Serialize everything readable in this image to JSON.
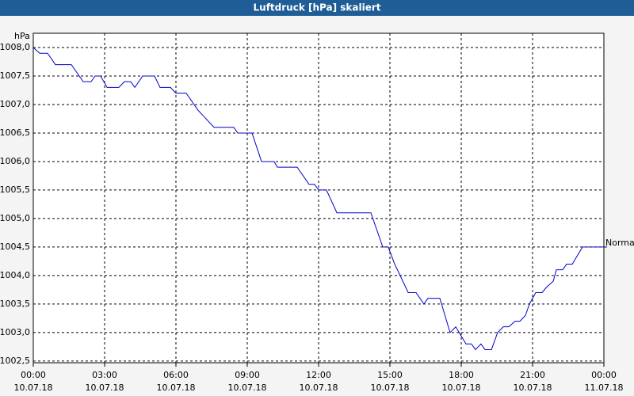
{
  "chart_data": {
    "type": "line",
    "title": "Luftdruck [hPa] skaliert",
    "y_label": "hPa",
    "xlim": [
      0,
      24
    ],
    "ylim": [
      1002.47,
      1008.25
    ],
    "grid": true,
    "xticks": [
      {
        "value": 0,
        "label": "00:00",
        "date": "10.07.18"
      },
      {
        "value": 3,
        "label": "03:00",
        "date": "10.07.18"
      },
      {
        "value": 6,
        "label": "06:00",
        "date": "10.07.18"
      },
      {
        "value": 9,
        "label": "09:00",
        "date": "10.07.18"
      },
      {
        "value": 12,
        "label": "12:00",
        "date": "10.07.18"
      },
      {
        "value": 15,
        "label": "15:00",
        "date": "10.07.18"
      },
      {
        "value": 18,
        "label": "18:00",
        "date": "10.07.18"
      },
      {
        "value": 21,
        "label": "21:00",
        "date": "10.07.18"
      },
      {
        "value": 24,
        "label": "00:00",
        "date": "11.07.18"
      }
    ],
    "yticks": [
      {
        "value": 1002.5,
        "label": "1002,5"
      },
      {
        "value": 1003.0,
        "label": "1003,0"
      },
      {
        "value": 1003.5,
        "label": "1003,5"
      },
      {
        "value": 1004.0,
        "label": "1004,0"
      },
      {
        "value": 1004.5,
        "label": "1004,5"
      },
      {
        "value": 1005.0,
        "label": "1005,0"
      },
      {
        "value": 1005.5,
        "label": "1005,5"
      },
      {
        "value": 1006.0,
        "label": "1006,0"
      },
      {
        "value": 1006.5,
        "label": "1006,5"
      },
      {
        "value": 1007.0,
        "label": "1007,0"
      },
      {
        "value": 1007.5,
        "label": "1007,5"
      },
      {
        "value": 1008.0,
        "label": "1008,0"
      }
    ],
    "x": [
      0,
      0.27,
      0.6,
      0.93,
      1.6,
      2.1,
      2.43,
      2.6,
      2.83,
      3.1,
      3.6,
      3.83,
      4.1,
      4.27,
      4.6,
      5.1,
      5.33,
      5.77,
      6.0,
      6.43,
      6.93,
      7.6,
      8.43,
      8.6,
      9.2,
      9.6,
      10.13,
      10.27,
      11.1,
      11.6,
      11.83,
      12.0,
      12.33,
      12.77,
      14.2,
      14.7,
      14.93,
      15.2,
      15.43,
      15.77,
      16.1,
      16.43,
      16.6,
      17.1,
      17.53,
      17.77,
      18.2,
      18.43,
      18.6,
      18.83,
      19.0,
      19.27,
      19.53,
      19.77,
      20.0,
      20.27,
      20.47,
      20.7,
      20.87,
      21.13,
      21.4,
      21.6,
      21.87,
      22.0,
      22.27,
      22.43,
      22.67,
      23.1,
      24
    ],
    "series": [
      {
        "name": "Normal",
        "color": "#0000cc",
        "values": [
          1008.0,
          1007.9,
          1007.9,
          1007.7,
          1007.7,
          1007.4,
          1007.4,
          1007.5,
          1007.5,
          1007.3,
          1007.3,
          1007.4,
          1007.4,
          1007.3,
          1007.5,
          1007.5,
          1007.3,
          1007.3,
          1007.2,
          1007.2,
          1006.9,
          1006.6,
          1006.6,
          1006.5,
          1006.5,
          1006.0,
          1006.0,
          1005.9,
          1005.9,
          1005.6,
          1005.6,
          1005.5,
          1005.5,
          1005.1,
          1005.1,
          1004.5,
          1004.5,
          1004.2,
          1004.0,
          1003.7,
          1003.7,
          1003.5,
          1003.6,
          1003.6,
          1003.0,
          1003.1,
          1002.8,
          1002.8,
          1002.7,
          1002.8,
          1002.7,
          1002.7,
          1003.0,
          1003.1,
          1003.1,
          1003.2,
          1003.2,
          1003.3,
          1003.5,
          1003.7,
          1003.7,
          1003.8,
          1003.9,
          1004.1,
          1004.1,
          1004.2,
          1004.2,
          1004.5,
          1004.5
        ]
      }
    ]
  }
}
